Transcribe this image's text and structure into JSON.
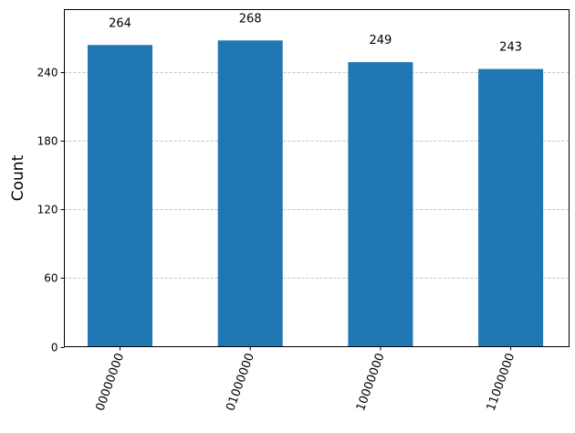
{
  "chart_data": {
    "type": "bar",
    "categories": [
      "00000000",
      "01000000",
      "10000000",
      "11000000"
    ],
    "values": [
      264,
      268,
      249,
      243
    ],
    "data_labels": [
      "264",
      "268",
      "249",
      "243"
    ],
    "title": "",
    "xlabel": "",
    "ylabel": "Count",
    "ylim": [
      0,
      295
    ],
    "yticks": [
      0,
      60,
      120,
      180,
      240
    ],
    "grid": "horizontal dashed",
    "bar_color": "#1f77b4",
    "xtick_rotation": 70
  }
}
